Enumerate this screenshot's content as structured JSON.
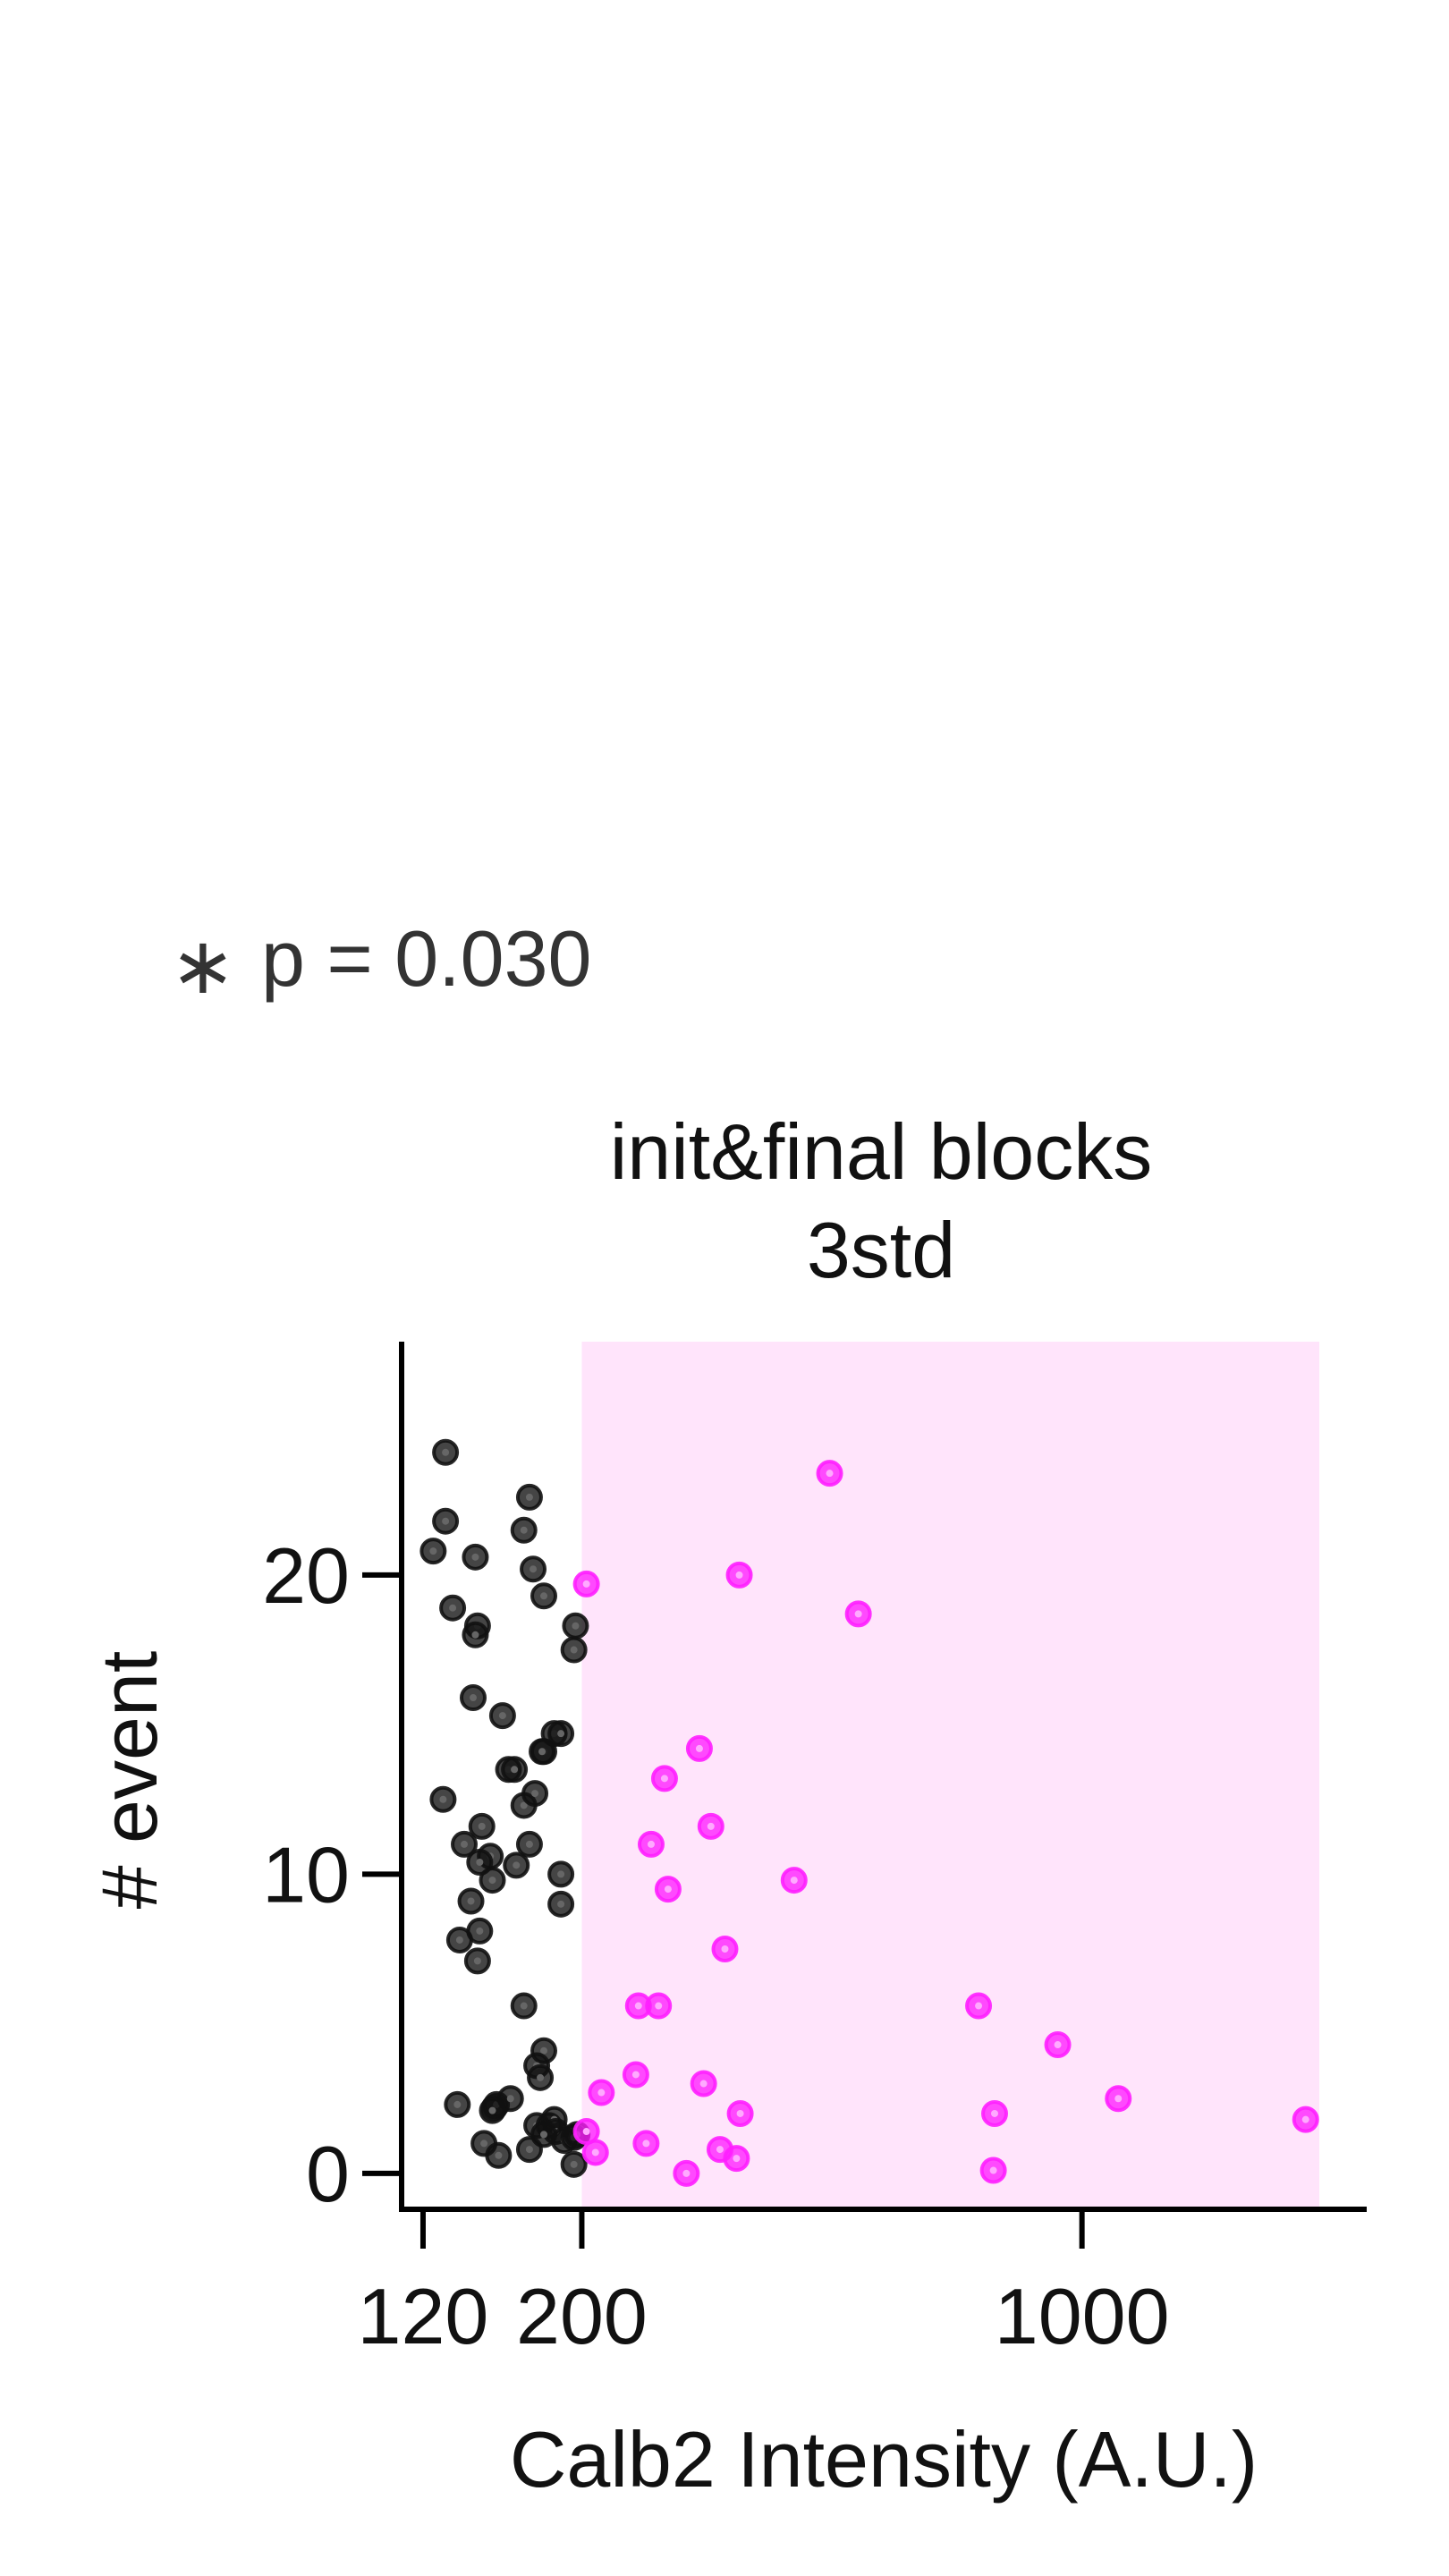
{
  "annotation": {
    "star": "∗",
    "text": "p = 0.030"
  },
  "chart_data": {
    "type": "scatter",
    "title": [
      "init&final blocks",
      "3std"
    ],
    "xlabel": "Calb2 Intensity (A.U.)",
    "ylabel": "# event",
    "x_scale": "log",
    "xlim": [
      112,
      2500
    ],
    "ylim": [
      -1.2,
      27.8
    ],
    "x_ticks": [
      {
        "value": 120,
        "label": "120"
      },
      {
        "value": 200,
        "label": "200"
      },
      {
        "value": 1000,
        "label": "1000"
      }
    ],
    "y_ticks": [
      {
        "value": 0,
        "label": "0"
      },
      {
        "value": 10,
        "label": "10"
      },
      {
        "value": 20,
        "label": "20"
      }
    ],
    "highlight_region": {
      "x_from": 200,
      "x_to": 2500,
      "color": "#ffe4fb"
    },
    "colors": {
      "below": "#111111",
      "above": "#ff1fff"
    },
    "series": [
      {
        "color": "#111111",
        "points": [
          [
            129,
            24.1
          ],
          [
            129,
            21.8
          ],
          [
            124,
            20.8
          ],
          [
            142,
            20.6
          ],
          [
            132,
            18.9
          ],
          [
            143,
            18.3
          ],
          [
            142,
            18.0
          ],
          [
            141,
            15.9
          ],
          [
            155,
            15.3
          ],
          [
            158,
            13.5
          ],
          [
            161,
            13.5
          ],
          [
            128,
            12.5
          ],
          [
            145,
            11.6
          ],
          [
            137,
            11.0
          ],
          [
            149,
            10.6
          ],
          [
            144,
            10.4
          ],
          [
            162,
            10.3
          ],
          [
            150,
            9.8
          ],
          [
            140,
            9.1
          ],
          [
            144,
            8.1
          ],
          [
            135,
            7.8
          ],
          [
            143,
            7.1
          ],
          [
            169,
            22.6
          ],
          [
            166,
            21.5
          ],
          [
            171,
            20.2
          ],
          [
            177,
            19.3
          ],
          [
            196,
            18.3
          ],
          [
            195,
            17.5
          ],
          [
            183,
            14.7
          ],
          [
            187,
            14.7
          ],
          [
            177,
            14.1
          ],
          [
            176,
            14.1
          ],
          [
            166,
            12.3
          ],
          [
            172,
            12.7
          ],
          [
            169,
            11.0
          ],
          [
            187,
            10.0
          ],
          [
            187,
            9.0
          ],
          [
            166,
            5.6
          ],
          [
            177,
            4.1
          ],
          [
            173,
            3.6
          ],
          [
            175,
            3.2
          ],
          [
            173,
            1.6
          ],
          [
            180,
            1.6
          ],
          [
            183,
            1.8
          ],
          [
            184,
            1.4
          ],
          [
            189,
            1.1
          ],
          [
            177,
            1.3
          ],
          [
            195,
            1.2
          ],
          [
            197,
            1.3
          ],
          [
            195,
            0.3
          ],
          [
            169,
            0.8
          ],
          [
            134,
            2.3
          ],
          [
            151,
            2.2
          ],
          [
            152,
            2.3
          ],
          [
            159,
            2.5
          ],
          [
            150,
            2.1
          ],
          [
            146,
            1.0
          ],
          [
            153,
            0.6
          ]
        ]
      },
      {
        "color": "#ff1fff",
        "points": [
          [
            203,
            19.7
          ],
          [
            444,
            23.4
          ],
          [
            332,
            20.0
          ],
          [
            487,
            18.7
          ],
          [
            292,
            14.2
          ],
          [
            261,
            13.2
          ],
          [
            303,
            11.6
          ],
          [
            250,
            11.0
          ],
          [
            264,
            9.5
          ],
          [
            396,
            9.8
          ],
          [
            317,
            7.5
          ],
          [
            240,
            5.6
          ],
          [
            256,
            5.6
          ],
          [
            717,
            5.6
          ],
          [
            925,
            4.3
          ],
          [
            213,
            2.7
          ],
          [
            238,
            3.3
          ],
          [
            296,
            3.0
          ],
          [
            333,
            2.0
          ],
          [
            755,
            2.0
          ],
          [
            1124,
            2.5
          ],
          [
            2054,
            1.8
          ],
          [
            203,
            1.4
          ],
          [
            209,
            0.7
          ],
          [
            246,
            1.0
          ],
          [
            312,
            0.8
          ],
          [
            329,
            0.5
          ],
          [
            280,
            0.0
          ],
          [
            752,
            0.1
          ]
        ]
      }
    ]
  }
}
